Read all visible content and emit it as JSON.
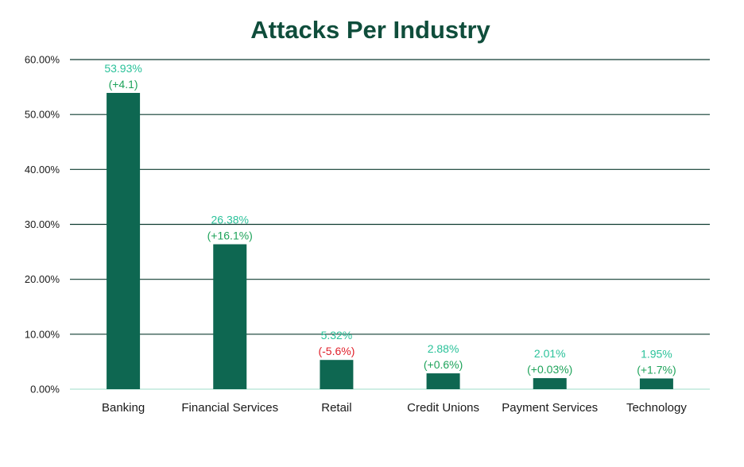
{
  "chart_data": {
    "type": "bar",
    "title": "Attacks Per Industry",
    "xlabel": "",
    "ylabel": "",
    "ylim": [
      0,
      60
    ],
    "y_ticks": [
      "0.00%",
      "10.00%",
      "20.00%",
      "30.00%",
      "40.00%",
      "50.00%",
      "60.00%"
    ],
    "grid": true,
    "categories": [
      "Banking",
      "Financial Services",
      "Retail",
      "Credit Unions",
      "Payment Services",
      "Technology"
    ],
    "values": [
      53.93,
      26.38,
      5.32,
      2.88,
      2.01,
      1.95
    ],
    "value_labels": [
      "53.93%",
      "26.38%",
      "5.32%",
      "2.88%",
      "2.01%",
      "1.95%"
    ],
    "change_labels": [
      "(+4.1)",
      "(+16.1%)",
      "(-5.6%)",
      "(+0.6%)",
      "(+0.03%)",
      "(+1.7%)"
    ],
    "colors": {
      "bar": "#0e6751",
      "title": "#0f4d3b",
      "value_label": "#2bc29a",
      "change_positive": "#1ea35a",
      "change_negative": "#e0202a",
      "gridline": "#0f3b30",
      "baseline": "#bfe8dc"
    }
  }
}
